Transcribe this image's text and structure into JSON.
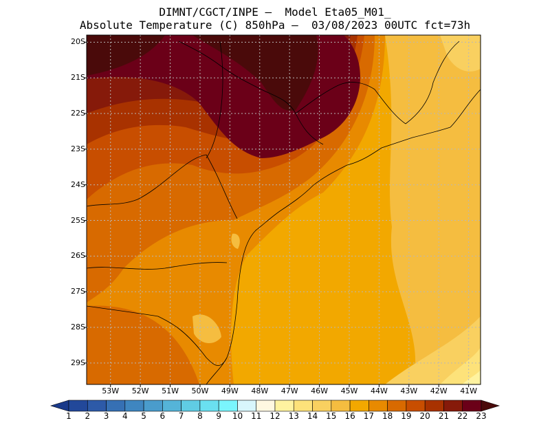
{
  "header": {
    "line1": "DIMNT/CGCT/INPE –  Model Eta05_M01_",
    "line2": "Absolute Temperature (C) 850hPa –  03/08/2023 00UTC fct=73h"
  },
  "map": {
    "lat_labels": [
      "20S",
      "21S",
      "22S",
      "23S",
      "24S",
      "25S",
      "26S",
      "27S",
      "28S",
      "29S"
    ],
    "lon_labels": [
      "53W",
      "52W",
      "51W",
      "50W",
      "49W",
      "48W",
      "47W",
      "46W",
      "45W",
      "44W",
      "43W",
      "42W",
      "41W"
    ],
    "lat_range": [
      -29.6,
      -19.8
    ],
    "lon_range": [
      -53.8,
      -40.6
    ]
  },
  "colorbar": {
    "labels": [
      "1",
      "2",
      "3",
      "4",
      "5",
      "6",
      "7",
      "8",
      "9",
      "10",
      "11",
      "12",
      "13",
      "14",
      "15",
      "16",
      "17",
      "18",
      "19",
      "20",
      "21",
      "22",
      "23"
    ],
    "colors": [
      "#1a3a8a",
      "#22489a",
      "#2d5aa8",
      "#3670b4",
      "#3f86c0",
      "#4a9ccc",
      "#55b4d8",
      "#60cce4",
      "#6ae0f0",
      "#7af5fd",
      "#d8f6fc",
      "#fff8e1",
      "#fff3a0",
      "#fde27a",
      "#f9d060",
      "#f5bd40",
      "#f2a800",
      "#e88a00",
      "#d86a00",
      "#c84e00",
      "#a83200",
      "#861a0a",
      "#6b0018",
      "#4a0a0a"
    ]
  }
}
